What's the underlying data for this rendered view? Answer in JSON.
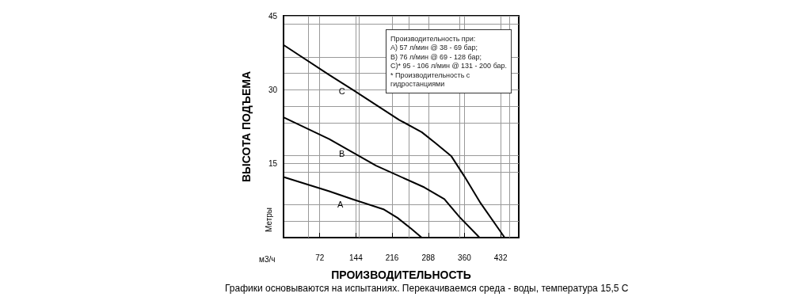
{
  "chart_data": {
    "type": "line",
    "xlabel": "ПРОИЗВОДИТЕЛЬНОСТЬ",
    "ylabel": "ВЫСОТА ПОДЪЕМА",
    "xlim": [
      0,
      468
    ],
    "xticks": [
      {
        "value": 0,
        "label": null
      },
      72,
      144,
      216,
      288,
      360,
      432
    ],
    "ylim": [
      0,
      45
    ],
    "yticks": [
      {
        "value": 0,
        "label": null
      },
      15,
      30,
      45
    ],
    "grid": true,
    "legend": false,
    "marker": "none",
    "line_style": "solid",
    "series": [
      {
        "name": "C",
        "color": "#000000",
        "x": [
          0,
          91,
          139,
          230,
          275,
          302,
          334,
          360,
          392,
          440
        ],
        "values": [
          39.1,
          33.0,
          29.9,
          23.9,
          21.4,
          19.2,
          16.5,
          12.4,
          7.0,
          0
        ]
      },
      {
        "name": "B",
        "color": "#000000",
        "x": [
          0,
          91,
          184,
          280,
          320,
          350,
          390
        ],
        "values": [
          24.4,
          20.0,
          14.6,
          10.2,
          7.8,
          4.2,
          0
        ]
      },
      {
        "name": "A",
        "color": "#000000",
        "x": [
          0,
          91,
          137,
          200,
          227,
          254,
          275
        ],
        "values": [
          12.3,
          9.4,
          7.8,
          5.7,
          4.0,
          1.8,
          0
        ]
      }
    ],
    "annotations": [
      "Производительность при:\nA) 57 л/мин @ 38 - 69 бар;\nB) 76 л/мин @ 69 - 128 бар;\nC)* 95 - 106 л/мин @ 131 - 200 бар.\n* Производительность с\nгидростанциями",
      "м3/ч",
      "Метры",
      "Графики основываются на испытаниях. Перекачиваемся среда - воды, температура 15,5 С"
    ]
  }
}
